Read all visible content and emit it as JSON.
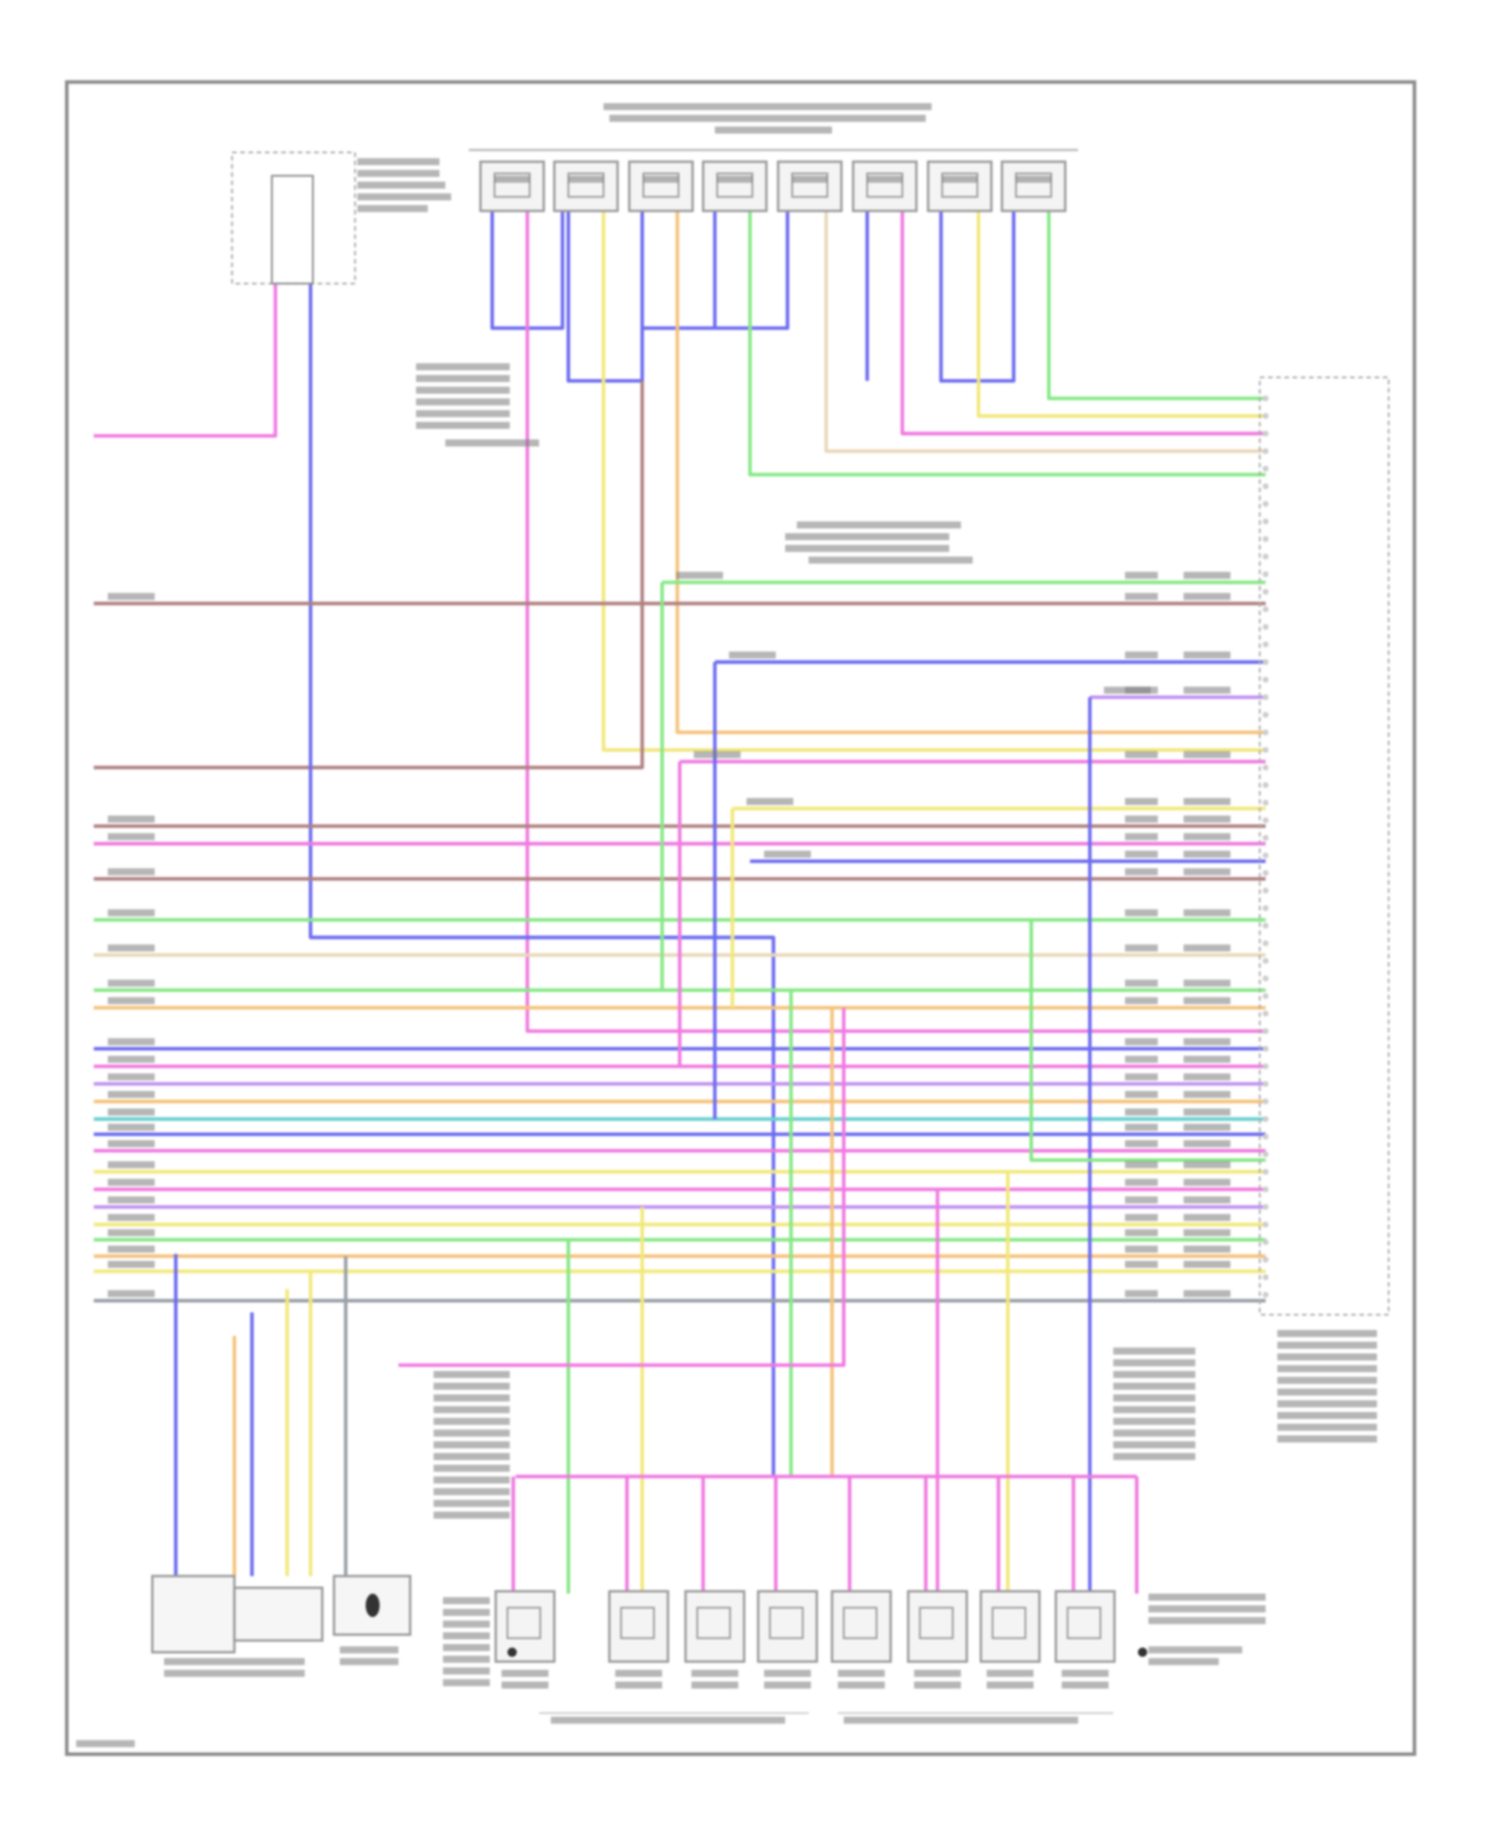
{
  "diagram": {
    "wire_colors": {
      "pink": "#f07ae0",
      "blue": "#6c6cf0",
      "green": "#86e886",
      "yellow": "#f2e87a",
      "orange": "#f5c27a",
      "brown": "#b08080",
      "tan": "#e8d8b8",
      "grey": "#9aa0a8",
      "teal": "#6ad0d0",
      "violet": "#c090f0"
    },
    "frame_color": "#8a8a8a",
    "label_color": "#7a7a7a"
  }
}
